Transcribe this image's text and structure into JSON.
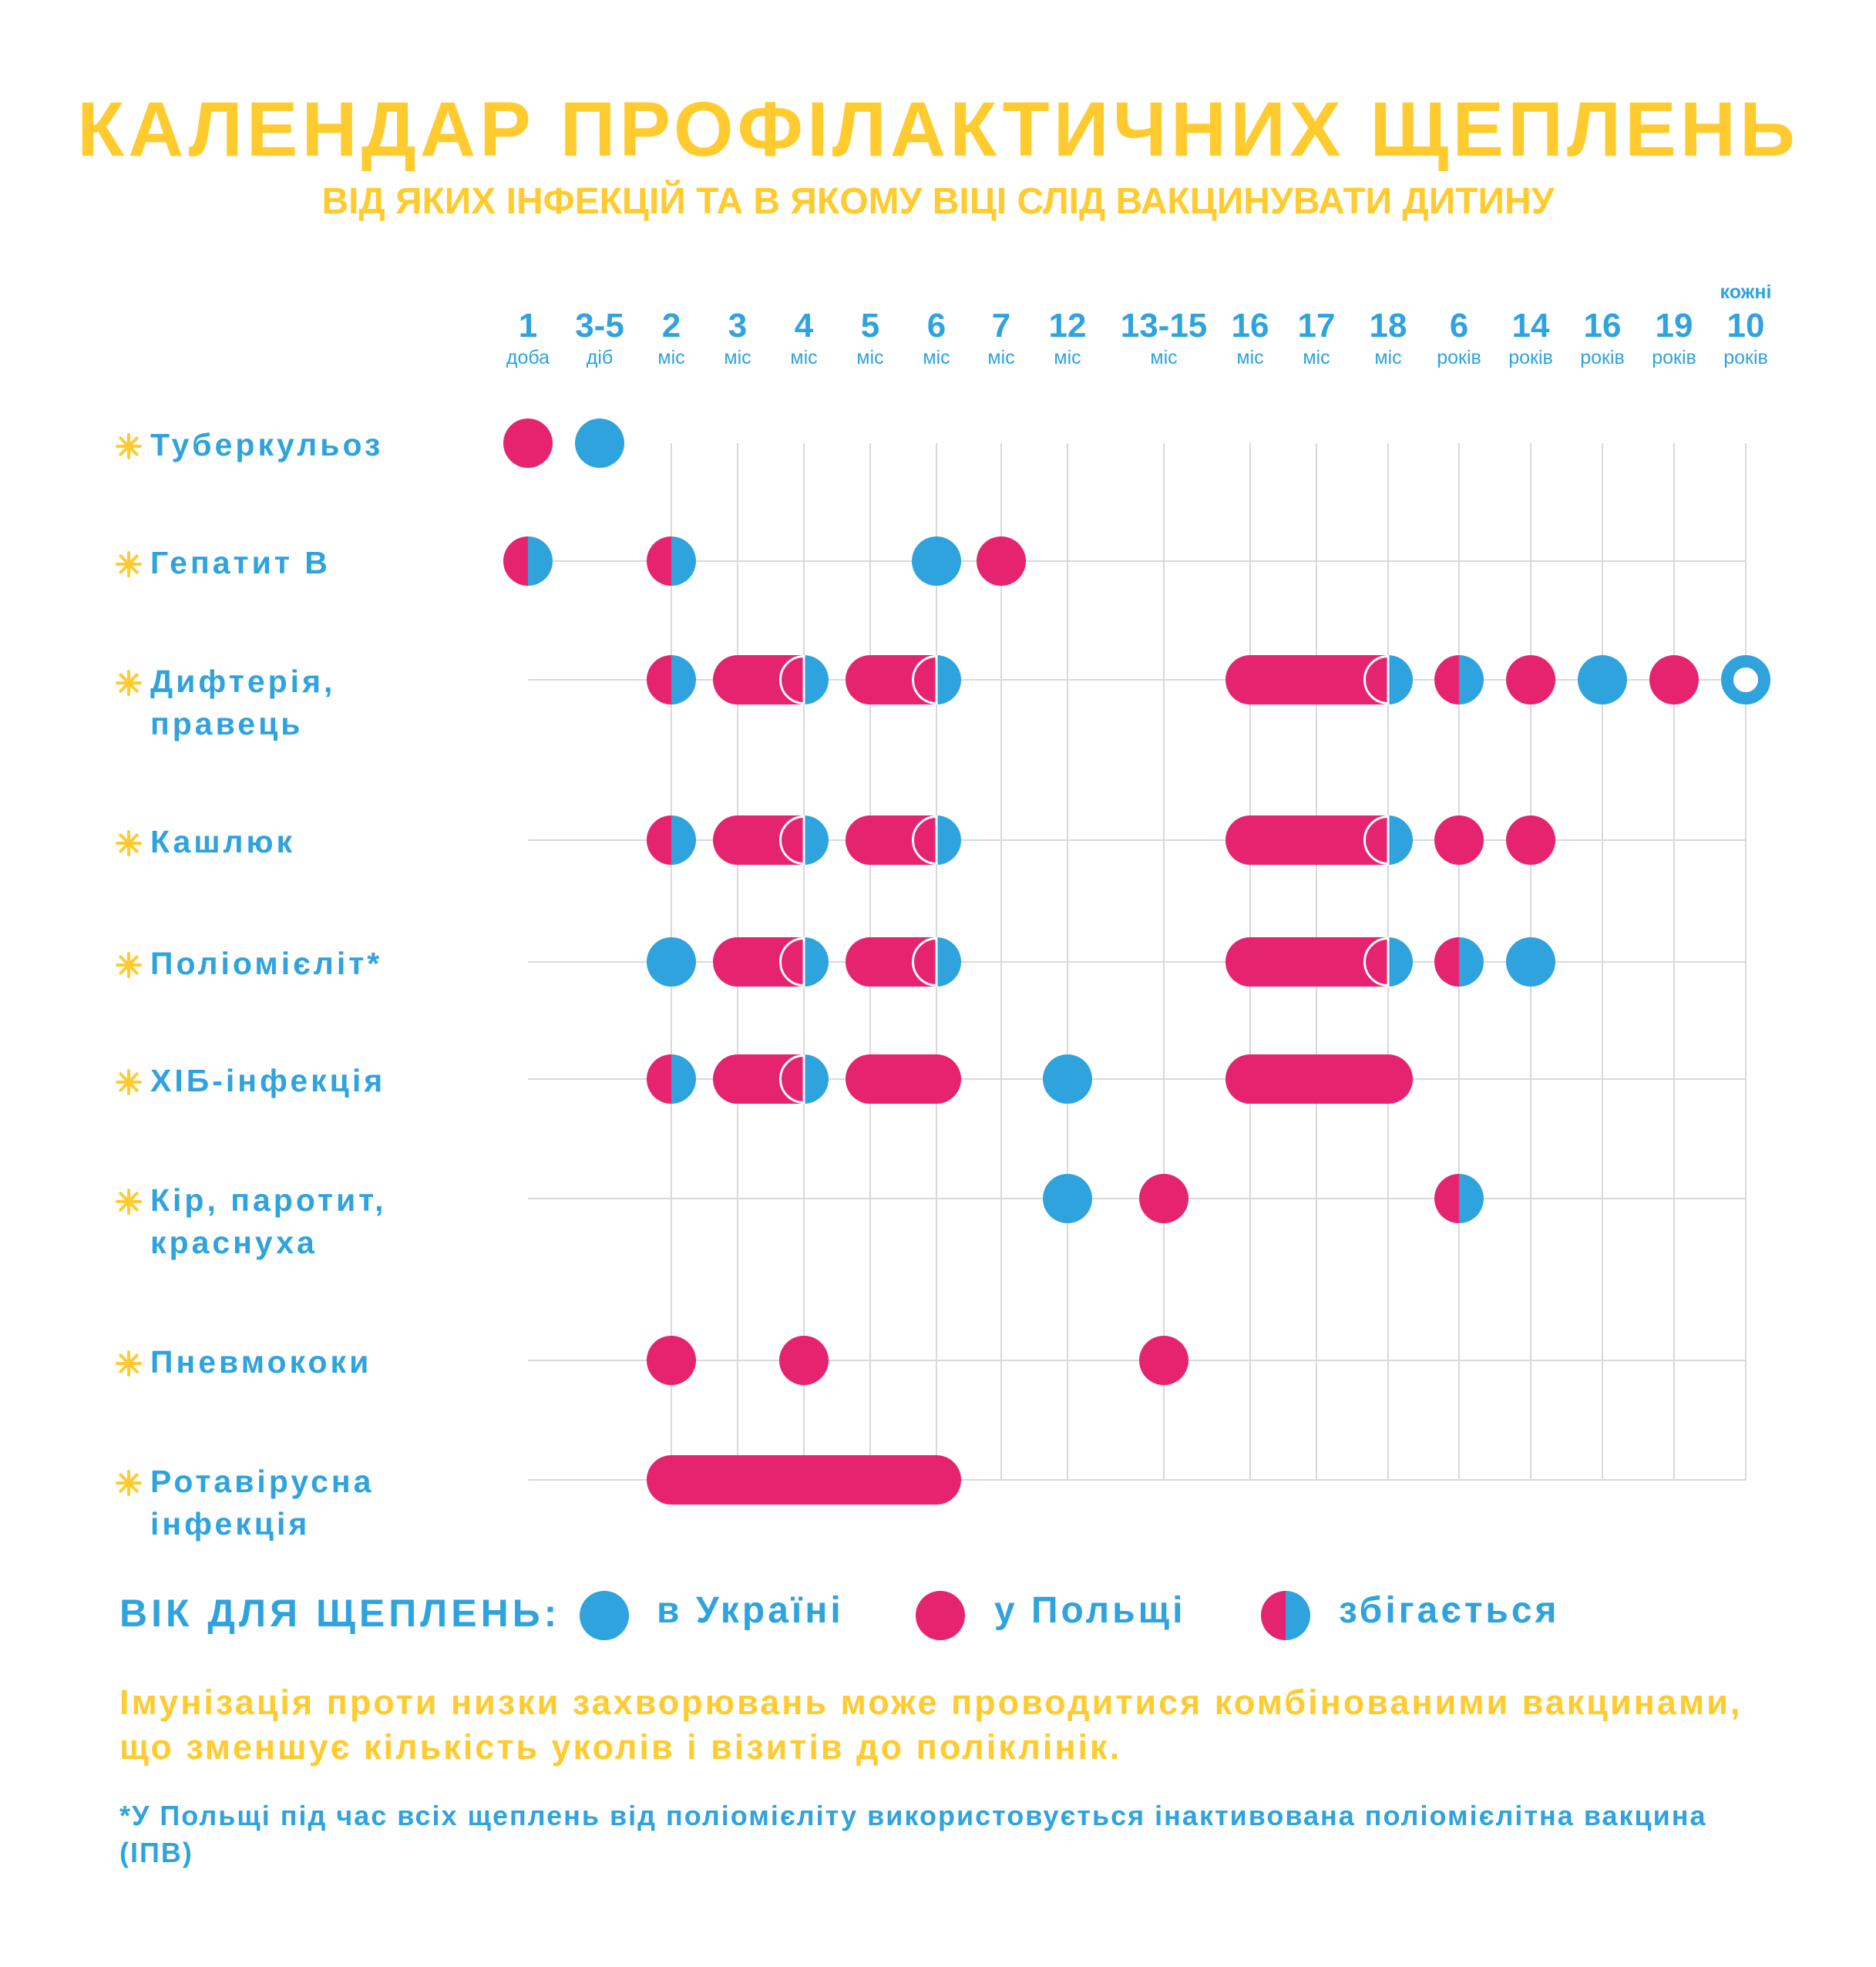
{
  "title": "КАЛЕНДАР ПРОФІЛАКТИЧНИХ ЩЕПЛЕНЬ",
  "subtitle": "ВІД ЯКИХ ІНФЕКЦІЙ ТА В ЯКОМУ ВІЦІ СЛІД ВАКЦИНУВАТИ ДИТИНУ",
  "colors": {
    "ukraine": "#2FA3DE",
    "poland": "#E6236F",
    "accent": "#FFCB2E",
    "grid": "#D9D9D9"
  },
  "legend": {
    "title": "ВІК ДЛЯ ЩЕПЛЕНЬ:",
    "items": [
      {
        "key": "ukraine",
        "label": "в Україні"
      },
      {
        "key": "poland",
        "label": "у Польщі"
      },
      {
        "key": "both",
        "label": "збігається"
      }
    ]
  },
  "note": "Імунізація проти низки захворювань може проводитися комбінованими вакцинами, що зменшує кількість уколів і візитів до поліклінік.",
  "footnote": "*У Польщі під час всіх щеплень від поліомієліту використовується інактивована поліомієлітна вакцина (ІПВ)",
  "chart_data": {
    "type": "timeline",
    "columns": [
      {
        "num": "1",
        "unit": "доба"
      },
      {
        "num": "3-5",
        "unit": "діб"
      },
      {
        "num": "2",
        "unit": "міс"
      },
      {
        "num": "3",
        "unit": "міс"
      },
      {
        "num": "4",
        "unit": "міс"
      },
      {
        "num": "5",
        "unit": "міс"
      },
      {
        "num": "6",
        "unit": "міс"
      },
      {
        "num": "7",
        "unit": "міс"
      },
      {
        "num": "12",
        "unit": "міс"
      },
      {
        "num": "13-15",
        "unit": "міс"
      },
      {
        "num": "16",
        "unit": "міс"
      },
      {
        "num": "17",
        "unit": "міс"
      },
      {
        "num": "18",
        "unit": "міс"
      },
      {
        "num": "6",
        "unit": "років"
      },
      {
        "num": "14",
        "unit": "років"
      },
      {
        "num": "16",
        "unit": "років"
      },
      {
        "num": "19",
        "unit": "років"
      },
      {
        "num": "10",
        "unit": "років",
        "pre": "кожні"
      }
    ],
    "rows": [
      {
        "label": [
          "Туберкульоз"
        ],
        "marks": [
          {
            "type": "poland",
            "col": 0
          },
          {
            "type": "ukraine",
            "col": 1
          }
        ]
      },
      {
        "label": [
          "Гепатит В"
        ],
        "marks": [
          {
            "type": "both",
            "col": 0
          },
          {
            "type": "both",
            "col": 2
          },
          {
            "type": "ukraine",
            "col": 6
          },
          {
            "type": "poland",
            "col": 7
          }
        ]
      },
      {
        "label": [
          "Дифтерія,",
          "правець"
        ],
        "marks": [
          {
            "type": "both",
            "col": 2
          },
          {
            "type": "poland-range",
            "from": 3,
            "to": 4,
            "end": "ukraine"
          },
          {
            "type": "poland-range",
            "from": 5,
            "to": 6,
            "end": "ukraine"
          },
          {
            "type": "poland-range",
            "from": 10,
            "to": 12,
            "end": "ukraine"
          },
          {
            "type": "both",
            "col": 13
          },
          {
            "type": "poland",
            "col": 14
          },
          {
            "type": "ukraine",
            "col": 15
          },
          {
            "type": "poland",
            "col": 16
          },
          {
            "type": "ukraine-ring",
            "col": 17
          }
        ]
      },
      {
        "label": [
          "Кашлюк"
        ],
        "marks": [
          {
            "type": "both",
            "col": 2
          },
          {
            "type": "poland-range",
            "from": 3,
            "to": 4,
            "end": "ukraine"
          },
          {
            "type": "poland-range",
            "from": 5,
            "to": 6,
            "end": "ukraine"
          },
          {
            "type": "poland-range",
            "from": 10,
            "to": 12,
            "end": "ukraine"
          },
          {
            "type": "poland",
            "col": 13
          },
          {
            "type": "poland",
            "col": 14
          }
        ]
      },
      {
        "label": [
          "Поліомієліт*"
        ],
        "marks": [
          {
            "type": "ukraine",
            "col": 2
          },
          {
            "type": "poland-range",
            "from": 3,
            "to": 4,
            "end": "ukraine"
          },
          {
            "type": "poland-range",
            "from": 5,
            "to": 6,
            "end": "ukraine"
          },
          {
            "type": "poland-range",
            "from": 10,
            "to": 12,
            "end": "ukraine"
          },
          {
            "type": "both",
            "col": 13
          },
          {
            "type": "ukraine",
            "col": 14
          }
        ]
      },
      {
        "label": [
          "ХІБ-інфекція"
        ],
        "marks": [
          {
            "type": "both",
            "col": 2
          },
          {
            "type": "poland-range",
            "from": 3,
            "to": 4,
            "end": "ukraine"
          },
          {
            "type": "poland-range",
            "from": 5,
            "to": 6
          },
          {
            "type": "ukraine",
            "col": 8
          },
          {
            "type": "poland-range",
            "from": 10,
            "to": 12
          }
        ]
      },
      {
        "label": [
          "Кір, паротит,",
          "краснуха"
        ],
        "marks": [
          {
            "type": "ukraine",
            "col": 8
          },
          {
            "type": "poland",
            "col": 9
          },
          {
            "type": "both",
            "col": 13
          }
        ]
      },
      {
        "label": [
          "Пневмококи"
        ],
        "marks": [
          {
            "type": "poland",
            "col": 2
          },
          {
            "type": "poland",
            "col": 4
          },
          {
            "type": "poland",
            "col": 9
          }
        ]
      },
      {
        "label": [
          "Ротавірусна",
          "інфекція"
        ],
        "marks": [
          {
            "type": "poland-range",
            "from": 2,
            "to": 6
          }
        ]
      }
    ]
  }
}
